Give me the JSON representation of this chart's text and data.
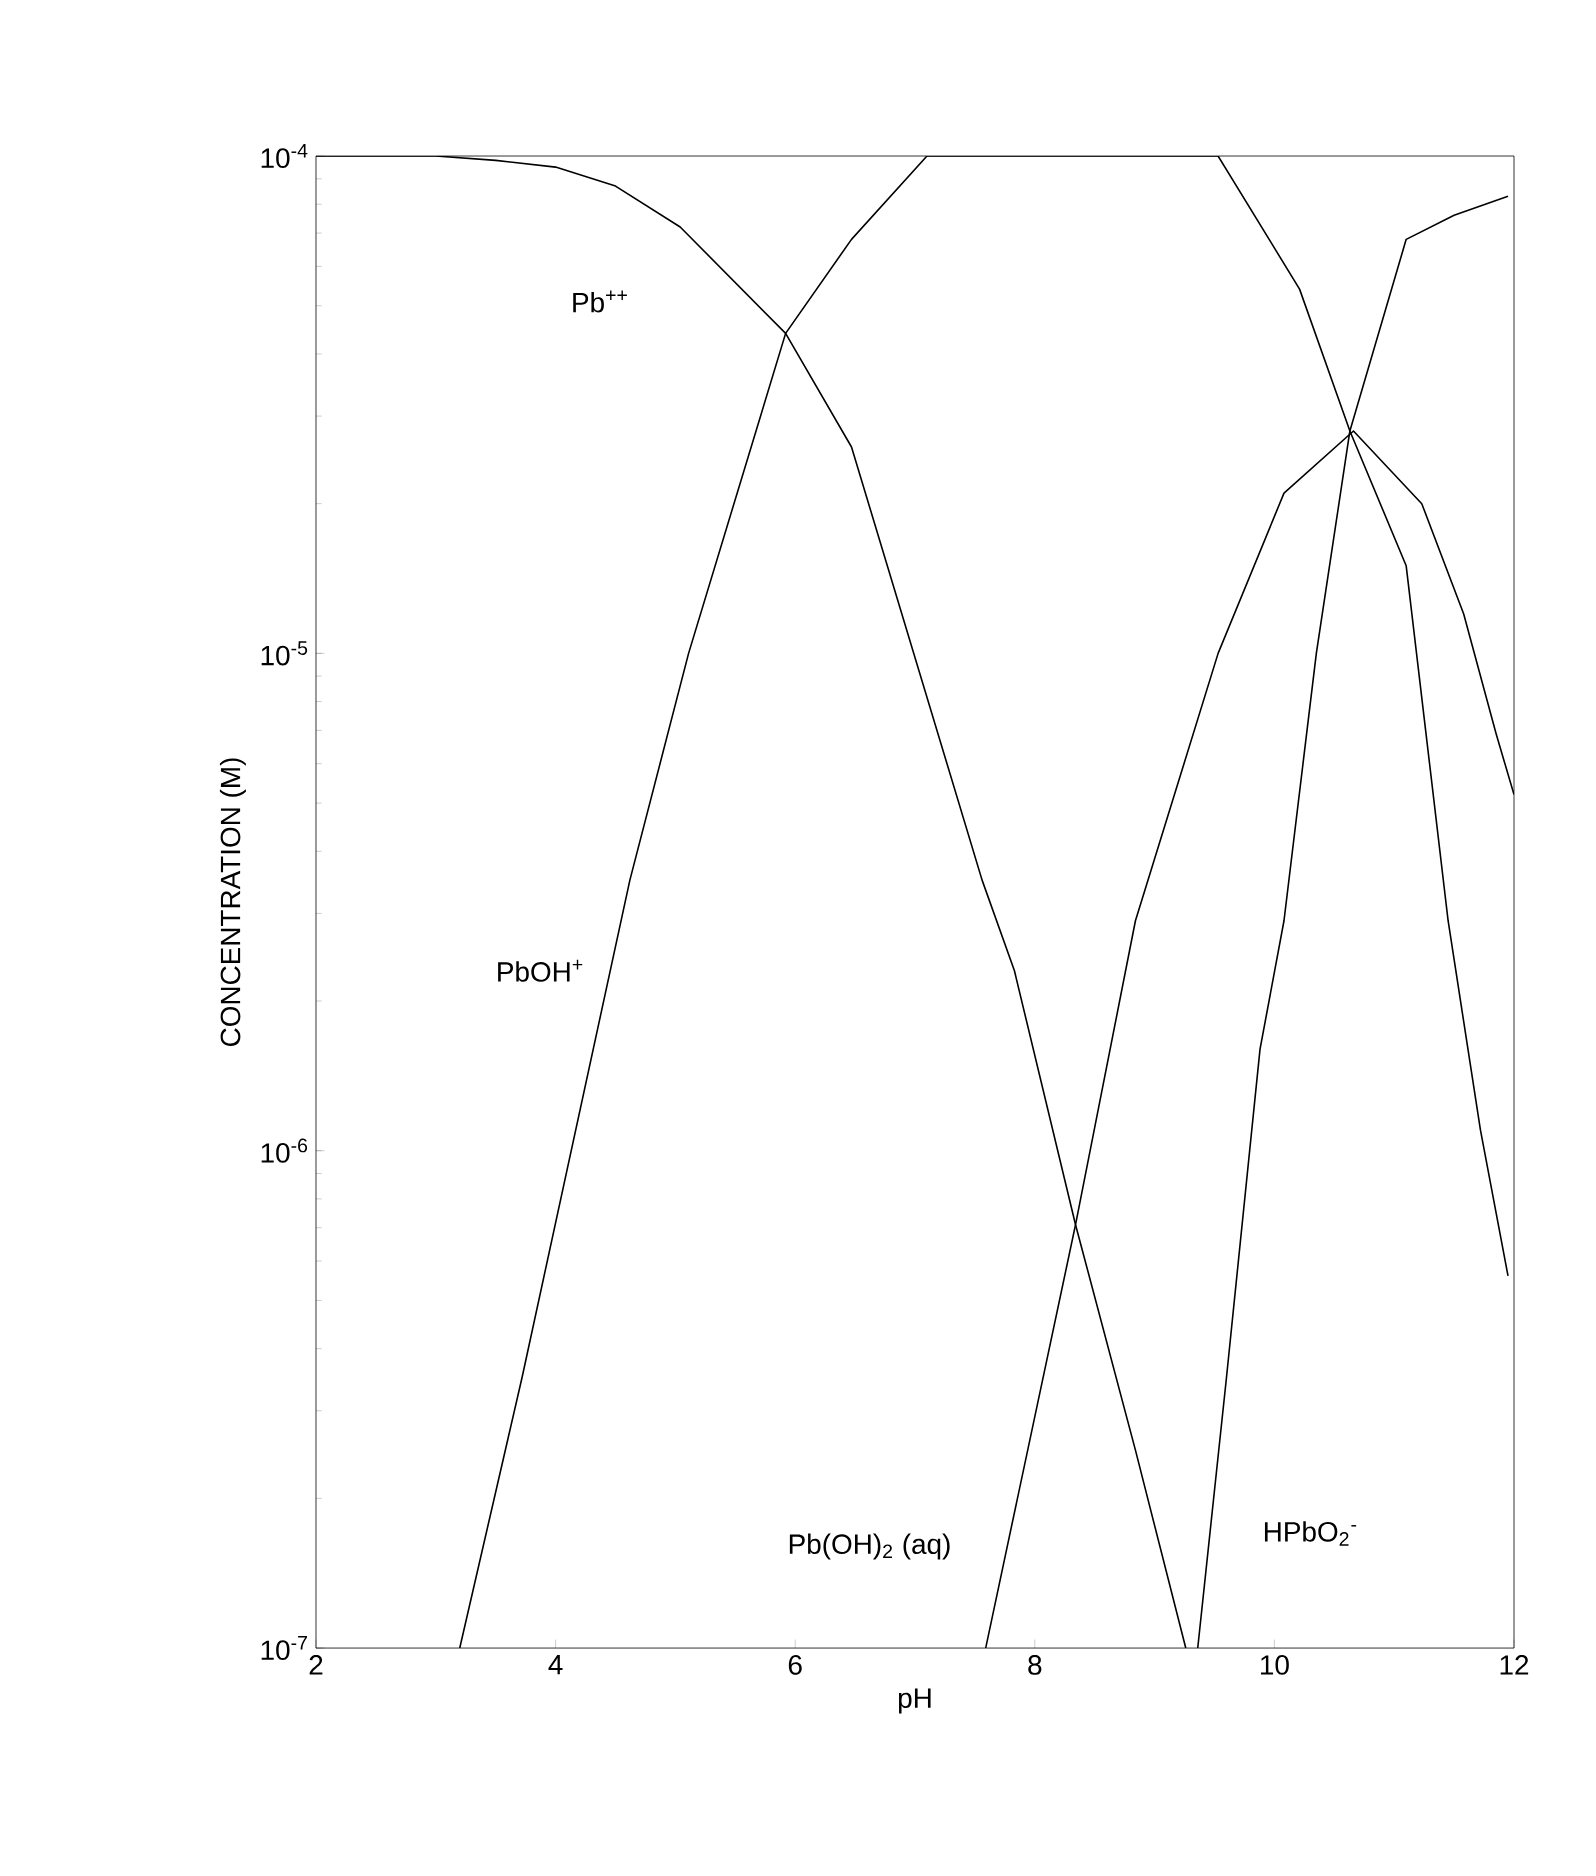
{
  "chart_data": {
    "type": "line",
    "xlabel": "pH",
    "ylabel": "CONCENTRATION  (M)",
    "log": "y",
    "marker": "none",
    "line_style": "solid",
    "legend": false,
    "xlim": [
      2,
      12
    ],
    "ylim": [
      1e-07,
      0.0001
    ],
    "xticks": [
      2,
      4,
      6,
      8,
      10,
      12
    ],
    "yticks": [
      {
        "value": 1e-07,
        "label": "10$^{-7}$"
      },
      {
        "value": 1e-06,
        "label": "10$^{-6}$"
      },
      {
        "value": 1e-05,
        "label": "10$^{-5}$"
      },
      {
        "value": 0.0001,
        "label": "10$^{-4}$"
      }
    ],
    "series": [
      {
        "name": "Pb$^{++}$",
        "color": "#000000",
        "x": [
          2,
          3,
          3.5,
          4,
          4.5,
          5.04,
          5.92,
          6.47,
          7.56,
          7.83,
          8.34,
          8.84,
          9.26
        ],
        "values": [
          0.0001,
          0.0001,
          9.8e-05,
          9.5e-05,
          8.7e-05,
          7.2e-05,
          4.4e-05,
          2.6e-05,
          3.5e-06,
          2.3e-06,
          7.1e-07,
          2.5e-07,
          1e-07
        ]
      },
      {
        "name": "PbOH$^{+}$",
        "color": "#000000",
        "x": [
          3.2,
          3.72,
          4.62,
          5.11,
          5.92,
          6.47,
          7.1,
          8,
          9.53,
          10.21,
          10.63,
          11.1,
          11.45,
          11.72,
          11.95
        ],
        "values": [
          1e-07,
          3.5e-07,
          3.5e-06,
          1e-05,
          4.4e-05,
          6.8e-05,
          0.0001,
          0.0001,
          0.0001,
          5.4e-05,
          2.8e-05,
          1.5e-05,
          2.9e-06,
          1.1e-06,
          5.6e-07
        ]
      },
      {
        "name": "Pb(OH)$_{2}$ (aq)",
        "color": "#000000",
        "x": [
          7.59,
          8.34,
          8.84,
          9.53,
          10.08,
          10.66,
          11.23,
          11.58,
          11.85,
          12
        ],
        "values": [
          1e-07,
          7.1e-07,
          2.9e-06,
          1e-05,
          2.1e-05,
          2.8e-05,
          2e-05,
          1.2e-05,
          6.9e-06,
          5.2e-06
        ]
      },
      {
        "name": "HPbO$_{2}$$^{-}$",
        "color": "#000000",
        "x": [
          9.36,
          9.6,
          9.88,
          10.08,
          10.35,
          10.63,
          11.1,
          11.5,
          11.95
        ],
        "values": [
          1e-07,
          3.5e-07,
          1.6e-06,
          2.9e-06,
          1e-05,
          2.8e-05,
          6.8e-05,
          7.6e-05,
          8.3e-05
        ]
      }
    ]
  }
}
